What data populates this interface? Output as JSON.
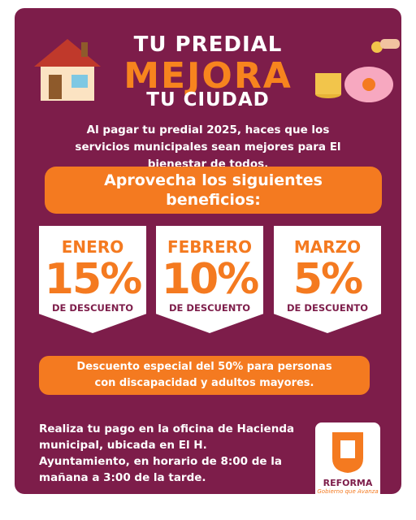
{
  "header": {
    "title_top": "TU PREDIAL",
    "title_main": "MEJORA",
    "title_bottom": "TU CIUDAD"
  },
  "intro": "Al pagar tu predial 2025, haces que los servicios municipales sean mejores para El bienestar de todos.",
  "benefits_heading": "Aprovecha los siguientes beneficios:",
  "cards": [
    {
      "month": "ENERO",
      "percent": "15%",
      "label": "DE DESCUENTO"
    },
    {
      "month": "FEBRERO",
      "percent": "10%",
      "label": "DE DESCUENTO"
    },
    {
      "month": "MARZO",
      "percent": "5%",
      "label": "DE DESCUENTO"
    }
  ],
  "special": "Descuento especial del 50% para personas con discapacidad y adultos mayores.",
  "footer": "Realiza tu pago en la oficina de Hacienda municipal, ubicada en El H. Ayuntamiento, en horario de 8:00 de la mañana a 3:00 de la tarde.",
  "logo": {
    "name": "REFORMA",
    "tagline": "Gobierno que Avanza"
  }
}
